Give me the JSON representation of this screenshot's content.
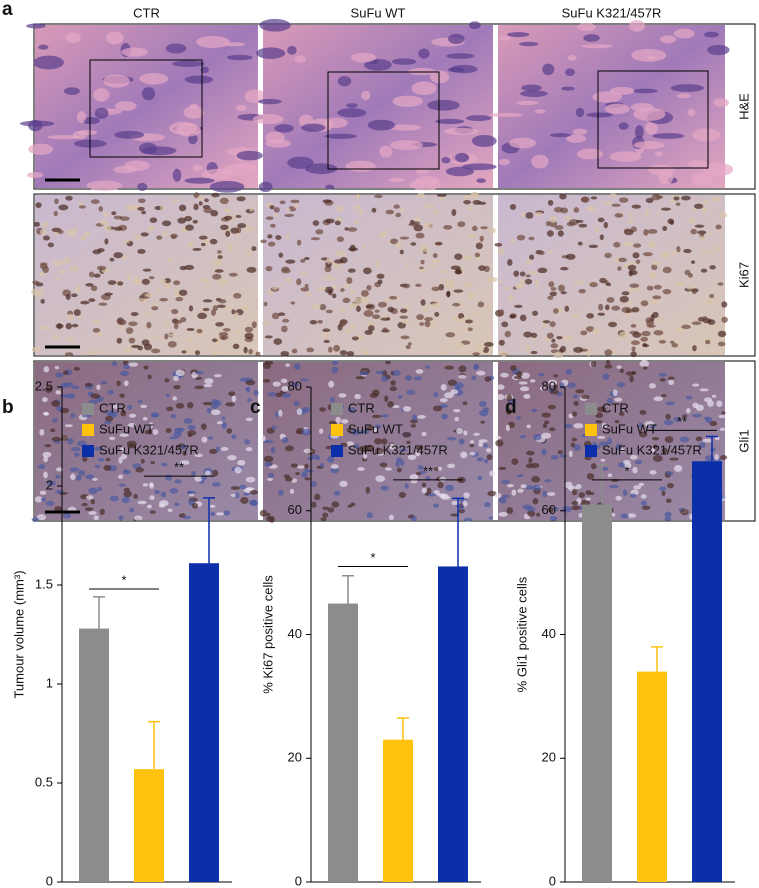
{
  "panel_a": {
    "label": "a",
    "columns": [
      "CTR",
      "SuFu WT",
      "SuFu K321/457R"
    ],
    "rows": [
      "H&E",
      "Ki67",
      "Gli1"
    ]
  },
  "chart_data": [
    {
      "type": "bar",
      "panel_label": "b",
      "y_label": "Tumour volume (mm³)",
      "categories": [
        null
      ],
      "series": [
        {
          "name": "CTR",
          "color": "#8c8c8c",
          "values": [
            1.28
          ],
          "errors": [
            0.16
          ]
        },
        {
          "name": "SuFu WT",
          "color": "#ffc20e",
          "values": [
            0.57
          ],
          "errors": [
            0.24
          ]
        },
        {
          "name": "SuFu K321/457R",
          "color": "#0a2fa8",
          "values": [
            1.61
          ],
          "errors": [
            0.33
          ]
        }
      ],
      "ylim": [
        0,
        2.5
      ],
      "yticks": [
        0,
        0.5,
        1,
        1.5,
        2,
        2.5
      ],
      "annotations": [
        {
          "text": "*",
          "series": [
            0,
            1
          ],
          "y": 1.48
        },
        {
          "text": "**",
          "series": [
            1,
            2
          ],
          "y": 2.05
        }
      ]
    },
    {
      "type": "bar",
      "panel_label": "c",
      "y_label": "% Ki67 positive cells",
      "categories": [
        null
      ],
      "series": [
        {
          "name": "CTR",
          "color": "#8c8c8c",
          "values": [
            45
          ],
          "errors": [
            4.5
          ]
        },
        {
          "name": "SuFu WT",
          "color": "#ffc20e",
          "values": [
            23
          ],
          "errors": [
            3.5
          ]
        },
        {
          "name": "SuFu K321/457R",
          "color": "#0a2fa8",
          "values": [
            51
          ],
          "errors": [
            11
          ]
        }
      ],
      "ylim": [
        0,
        80
      ],
      "yticks": [
        0,
        20,
        40,
        60,
        80
      ],
      "annotations": [
        {
          "text": "*",
          "series": [
            0,
            1
          ],
          "y": 51
        },
        {
          "text": "**",
          "series": [
            1,
            2
          ],
          "y": 65
        }
      ]
    },
    {
      "type": "bar",
      "panel_label": "d",
      "y_label": "% Gli1 positive cells",
      "categories": [
        null
      ],
      "series": [
        {
          "name": "CTR",
          "color": "#8c8c8c",
          "values": [
            61
          ],
          "errors": [
            6.5
          ]
        },
        {
          "name": "SuFu WT",
          "color": "#ffc20e",
          "values": [
            34
          ],
          "errors": [
            4
          ]
        },
        {
          "name": "SuFu K321/457R",
          "color": "#0a2fa8",
          "values": [
            68
          ],
          "errors": [
            4
          ]
        }
      ],
      "ylim": [
        0,
        80
      ],
      "yticks": [
        0,
        20,
        40,
        60,
        80
      ],
      "annotations": [
        {
          "text": "*",
          "series": [
            0,
            1
          ],
          "y": 65
        },
        {
          "text": "**",
          "series": [
            1,
            2
          ],
          "y": 73
        }
      ]
    }
  ]
}
